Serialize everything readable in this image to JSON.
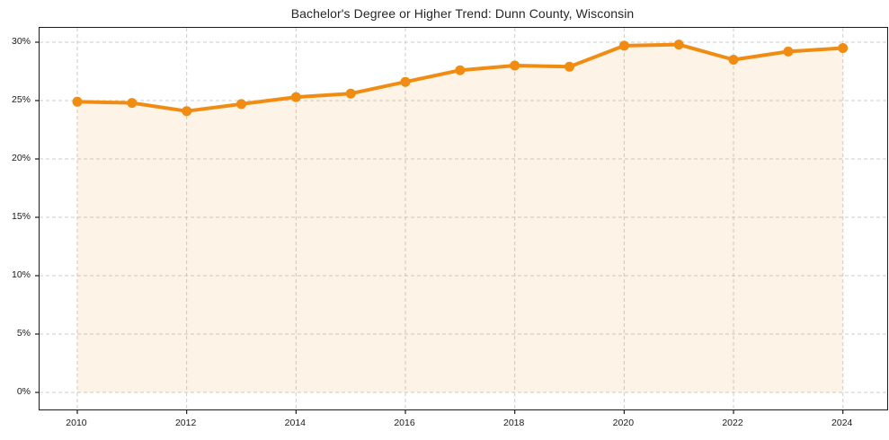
{
  "chart_data": {
    "type": "line",
    "title": "Bachelor's Degree or Higher Trend: Dunn County, Wisconsin",
    "x": [
      2010,
      2011,
      2012,
      2013,
      2014,
      2015,
      2016,
      2017,
      2018,
      2019,
      2020,
      2021,
      2022,
      2023,
      2024
    ],
    "values": [
      24.9,
      24.8,
      24.1,
      24.7,
      25.3,
      25.6,
      26.6,
      27.6,
      28.0,
      27.9,
      29.7,
      29.8,
      28.5,
      29.2,
      29.5
    ],
    "xlabel": "",
    "ylabel": "",
    "xticks": [
      2010,
      2012,
      2014,
      2016,
      2018,
      2020,
      2022,
      2024
    ],
    "xtick_labels": [
      "2010",
      "2012",
      "2014",
      "2016",
      "2018",
      "2020",
      "2022",
      "2024"
    ],
    "yticks": [
      0,
      5,
      10,
      15,
      20,
      25,
      30
    ],
    "ytick_labels": [
      "0%",
      "5%",
      "10%",
      "15%",
      "20%",
      "25%",
      "30%"
    ],
    "xlim": [
      2009.31,
      2024.81
    ],
    "ylim": [
      -1.46,
      31.23
    ],
    "fill_baseline": 0,
    "grid": true,
    "legend": "none",
    "colors": {
      "line": "#f08c12",
      "marker": "#f08c12",
      "area_fill": "rgba(240,140,18,0.10)",
      "grid": "#cccccc",
      "axis": "#1a1a1a",
      "title_text": "#262626",
      "tick_text": "#1a1a1a"
    }
  }
}
